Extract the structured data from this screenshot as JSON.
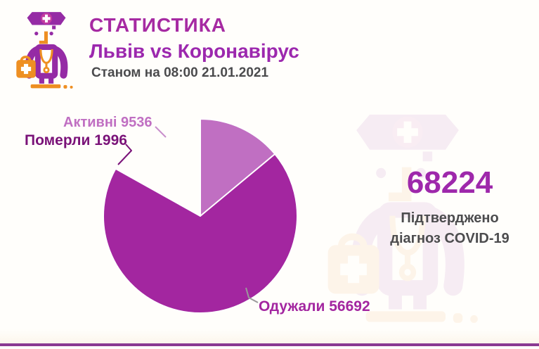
{
  "header": {
    "title": "СТАТИСТИКА",
    "subtitle": "Львів vs Коронавірус",
    "as_of": "Станом на 08:00 21.01.2021"
  },
  "summary": {
    "total": "68224",
    "caption_line1": "Підтверджено",
    "caption_line2": "діагноз COVID-19"
  },
  "chart_data": {
    "type": "pie",
    "title": "Львів vs Коронавірус",
    "total": 68224,
    "start_angle_deg": 0,
    "direction": "clockwise",
    "legend_position": "labels-with-leader-lines",
    "slices": [
      {
        "label": "Одужали",
        "value": 56692,
        "color": "#a326a0",
        "display": "Одужали 56692"
      },
      {
        "label": "Померли",
        "value": 1996,
        "color": "#7a1278",
        "display": "Померли 1996"
      },
      {
        "label": "Активні",
        "value": 9536,
        "color": "#c06fc2",
        "display": "Активні 9536"
      }
    ]
  },
  "icons": {
    "doctor": "doctor-with-medical-bag-icon",
    "watermark": "doctor-watermark-icon"
  },
  "colors": {
    "accent_magenta": "#a326a0",
    "accent_purple": "#9c28ae",
    "dark_purple": "#7a1278",
    "light_orchid": "#c06fc2",
    "icon_purple": "#952ba5",
    "icon_orange": "#ee8f22",
    "text_gray": "#4b4b4d",
    "bottom_bar": "#8a3a92",
    "background": "#fffefb"
  }
}
